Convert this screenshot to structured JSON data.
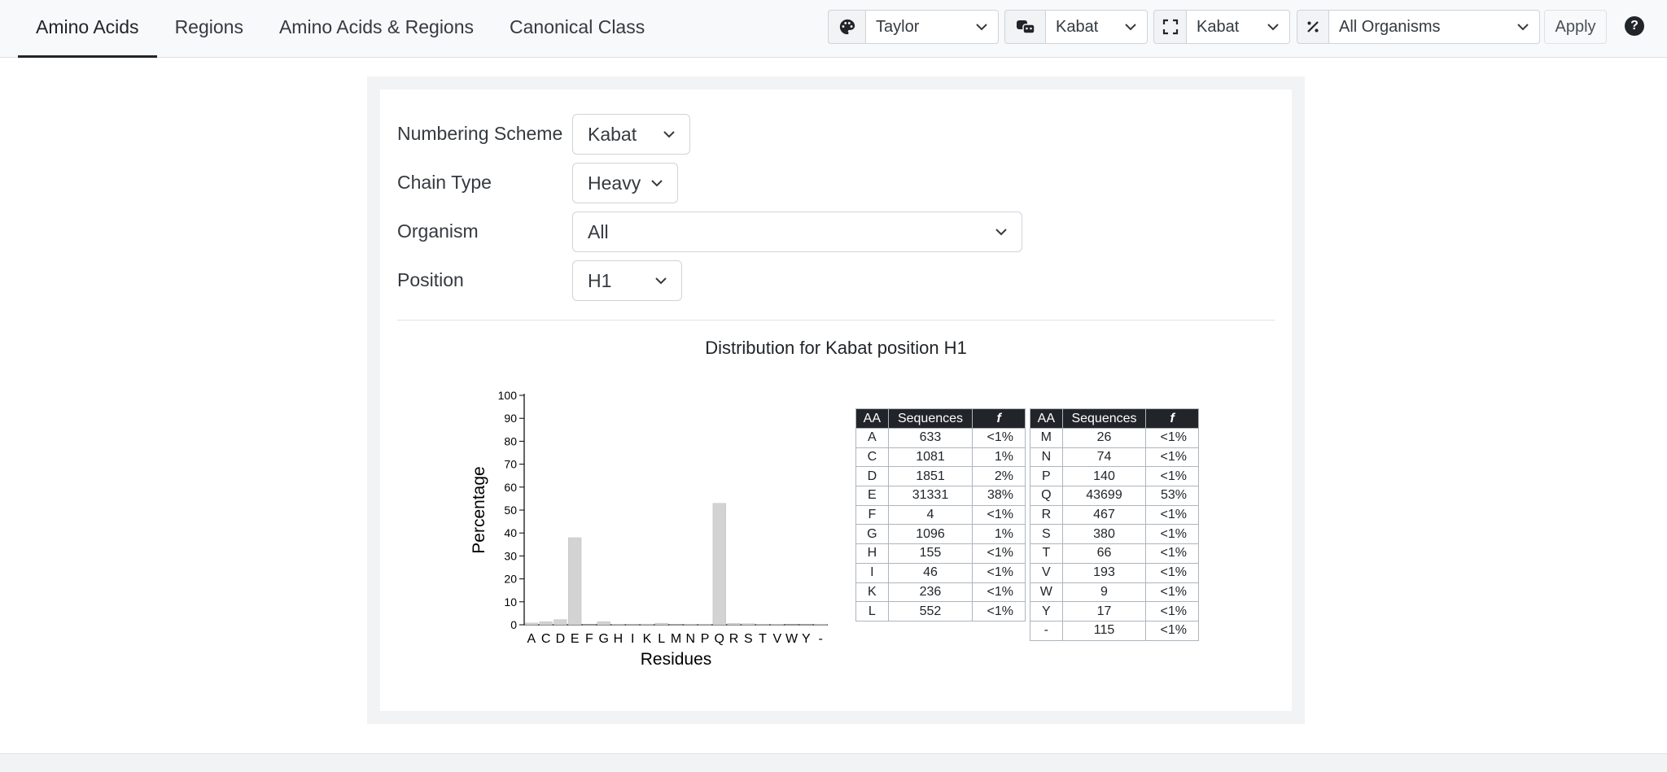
{
  "nav": {
    "tabs": [
      {
        "label": "Amino Acids",
        "active": true
      },
      {
        "label": "Regions",
        "active": false
      },
      {
        "label": "Amino Acids & Regions",
        "active": false
      },
      {
        "label": "Canonical Class",
        "active": false
      }
    ]
  },
  "toolbar": {
    "color_scheme": {
      "icon": "palette-icon",
      "value": "Taylor"
    },
    "numbering": {
      "icon": "masks-icon",
      "value": "Kabat"
    },
    "region_scheme": {
      "icon": "expand-icon",
      "value": "Kabat"
    },
    "organism": {
      "icon": "percent-icon",
      "value": "All Organisms"
    },
    "apply_label": "Apply",
    "help_icon": "question-circle-icon"
  },
  "form": {
    "numbering_scheme": {
      "label": "Numbering Scheme",
      "value": "Kabat"
    },
    "chain_type": {
      "label": "Chain Type",
      "value": "Heavy"
    },
    "organism": {
      "label": "Organism",
      "value": "All"
    },
    "position": {
      "label": "Position",
      "value": "H1"
    }
  },
  "chart_title": "Distribution for Kabat position H1",
  "chart_data": {
    "type": "bar",
    "categories": [
      "A",
      "C",
      "D",
      "E",
      "F",
      "G",
      "H",
      "I",
      "K",
      "L",
      "M",
      "N",
      "P",
      "Q",
      "R",
      "S",
      "T",
      "V",
      "W",
      "Y",
      "-"
    ],
    "values": [
      0.77,
      1.31,
      2.24,
      37.95,
      0.005,
      1.33,
      0.19,
      0.06,
      0.29,
      0.67,
      0.03,
      0.09,
      0.17,
      52.93,
      0.57,
      0.46,
      0.08,
      0.23,
      0.01,
      0.02,
      0.14
    ],
    "ylim": [
      0,
      100
    ],
    "yticks": [
      0,
      10,
      20,
      30,
      40,
      50,
      60,
      70,
      80,
      90,
      100
    ],
    "xlabel": "Residues",
    "ylabel": "Percentage",
    "bar_color": "#d3d3d3"
  },
  "table": {
    "headers": [
      "AA",
      "Sequences",
      "f"
    ],
    "left": [
      [
        "A",
        "633",
        "<1%"
      ],
      [
        "C",
        "1081",
        "1%"
      ],
      [
        "D",
        "1851",
        "2%"
      ],
      [
        "E",
        "31331",
        "38%"
      ],
      [
        "F",
        "4",
        "<1%"
      ],
      [
        "G",
        "1096",
        "1%"
      ],
      [
        "H",
        "155",
        "<1%"
      ],
      [
        "I",
        "46",
        "<1%"
      ],
      [
        "K",
        "236",
        "<1%"
      ],
      [
        "L",
        "552",
        "<1%"
      ]
    ],
    "right": [
      [
        "M",
        "26",
        "<1%"
      ],
      [
        "N",
        "74",
        "<1%"
      ],
      [
        "P",
        "140",
        "<1%"
      ],
      [
        "Q",
        "43699",
        "53%"
      ],
      [
        "R",
        "467",
        "<1%"
      ],
      [
        "S",
        "380",
        "<1%"
      ],
      [
        "T",
        "66",
        "<1%"
      ],
      [
        "V",
        "193",
        "<1%"
      ],
      [
        "W",
        "9",
        "<1%"
      ],
      [
        "Y",
        "17",
        "<1%"
      ],
      [
        "-",
        "115",
        "<1%"
      ]
    ]
  }
}
